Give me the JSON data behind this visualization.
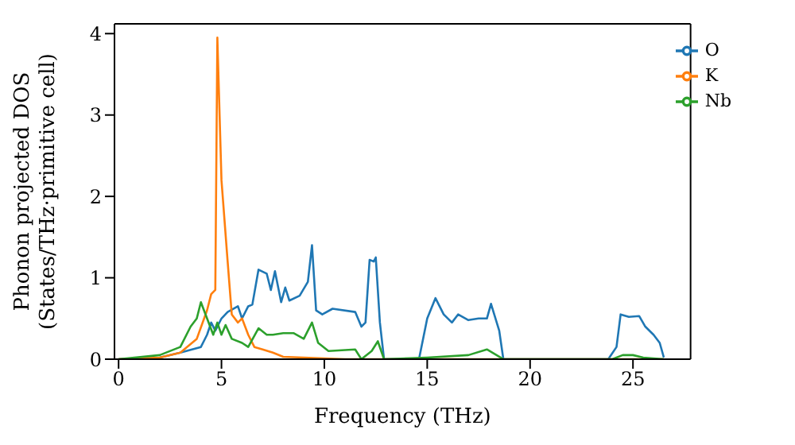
{
  "chart_data": {
    "type": "line",
    "xlabel": "Frequency (THz)",
    "ylabel": "Phonon projected DOS\n(States/THz·primitive cell)",
    "xlim": [
      -0.2,
      27.8
    ],
    "ylim": [
      0,
      4.12
    ],
    "xticks": [
      0,
      5,
      10,
      15,
      20,
      25
    ],
    "yticks": [
      0,
      1,
      2,
      3,
      4
    ],
    "grid": false,
    "legend": "top right",
    "marker": "none",
    "line_style": "solid",
    "series": [
      {
        "name": "O",
        "color": "#1f77b4",
        "x": [
          0,
          2,
          3,
          4,
          4.3,
          4.5,
          4.7,
          5,
          5.3,
          5.8,
          6,
          6.3,
          6.5,
          6.8,
          7.2,
          7.4,
          7.6,
          7.9,
          8.1,
          8.3,
          8.8,
          9.2,
          9.4,
          9.6,
          9.9,
          10.4,
          11.5,
          11.8,
          12,
          12.2,
          12.4,
          12.5,
          12.7,
          12.9,
          14.6,
          15,
          15.4,
          15.8,
          16.2,
          16.5,
          17,
          17.5,
          17.9,
          18.1,
          18.5,
          18.7,
          23.8,
          24.2,
          24.4,
          24.8,
          25.3,
          25.6,
          26,
          26.3,
          26.5
        ],
        "values": [
          0,
          0.02,
          0.08,
          0.15,
          0.3,
          0.45,
          0.35,
          0.5,
          0.58,
          0.65,
          0.5,
          0.65,
          0.67,
          1.1,
          1.05,
          0.85,
          1.08,
          0.7,
          0.88,
          0.72,
          0.78,
          0.95,
          1.4,
          0.6,
          0.55,
          0.62,
          0.58,
          0.4,
          0.45,
          1.22,
          1.2,
          1.25,
          0.45,
          0,
          0,
          0.5,
          0.75,
          0.55,
          0.45,
          0.55,
          0.48,
          0.5,
          0.5,
          0.68,
          0.35,
          0,
          0,
          0.15,
          0.55,
          0.52,
          0.53,
          0.4,
          0.3,
          0.2,
          0.02
        ]
      },
      {
        "name": "K",
        "color": "#ff7f0e",
        "x": [
          0,
          2,
          3,
          3.8,
          4.3,
          4.5,
          4.7,
          4.8,
          5,
          5.3,
          5.5,
          5.8,
          6,
          6.3,
          6.6,
          7,
          7.5,
          8,
          9,
          10,
          11,
          26.5
        ],
        "values": [
          0,
          0.02,
          0.08,
          0.25,
          0.6,
          0.8,
          0.85,
          3.95,
          2.2,
          1.2,
          0.55,
          0.45,
          0.5,
          0.3,
          0.15,
          0.12,
          0.08,
          0.03,
          0.02,
          0.01,
          0,
          0
        ]
      },
      {
        "name": "Nb",
        "color": "#2ca02c",
        "x": [
          0,
          2,
          3,
          3.5,
          3.8,
          4,
          4.3,
          4.6,
          4.8,
          5,
          5.2,
          5.5,
          6,
          6.3,
          6.8,
          7.2,
          7.5,
          8,
          8.5,
          9,
          9.4,
          9.7,
          10.2,
          11.5,
          11.8,
          12.3,
          12.6,
          12.9,
          15,
          17,
          17.9,
          18.5,
          18.7,
          24,
          24.5,
          25,
          25.5,
          26.5
        ],
        "values": [
          0,
          0.05,
          0.15,
          0.4,
          0.5,
          0.7,
          0.5,
          0.3,
          0.45,
          0.3,
          0.42,
          0.25,
          0.2,
          0.15,
          0.38,
          0.3,
          0.3,
          0.32,
          0.32,
          0.25,
          0.45,
          0.2,
          0.1,
          0.12,
          0,
          0.1,
          0.22,
          0,
          0.02,
          0.05,
          0.12,
          0.03,
          0,
          0,
          0.05,
          0.05,
          0.02,
          0
        ]
      }
    ]
  }
}
